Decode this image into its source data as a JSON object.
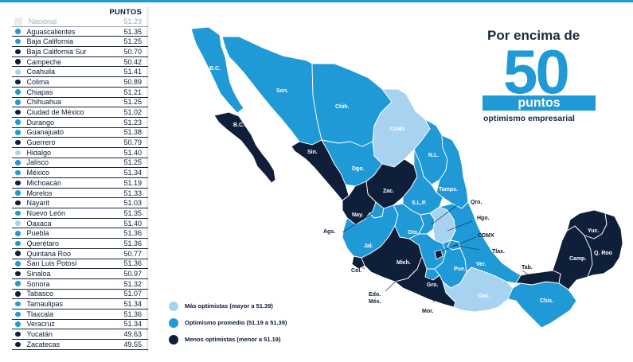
{
  "colors": {
    "light": "#a7d3f0",
    "medium": "#1f9ad6",
    "dark": "#0f1f3a",
    "national": "#ececec"
  },
  "table": {
    "header": "PUNTOS",
    "rows": [
      {
        "state": "Nacional",
        "value": "51.29",
        "group": "national"
      },
      {
        "state": "Aguascalientes",
        "value": "51.35",
        "group": "medium"
      },
      {
        "state": "Baja California",
        "value": "51.25",
        "group": "medium"
      },
      {
        "state": "Baja California Sur",
        "value": "50.70",
        "group": "dark"
      },
      {
        "state": "Campeche",
        "value": "50.42",
        "group": "dark"
      },
      {
        "state": "Coahuila",
        "value": "51.41",
        "group": "light"
      },
      {
        "state": "Colima",
        "value": "50.89",
        "group": "dark"
      },
      {
        "state": "Chiapas",
        "value": "51.21",
        "group": "medium"
      },
      {
        "state": "Chihuahua",
        "value": "51.25",
        "group": "medium"
      },
      {
        "state": "Ciudad de México",
        "value": "51.02",
        "group": "dark"
      },
      {
        "state": "Durango",
        "value": "51.23",
        "group": "medium"
      },
      {
        "state": "Guanajuato",
        "value": "51.38",
        "group": "medium"
      },
      {
        "state": "Guerrero",
        "value": "50.79",
        "group": "dark"
      },
      {
        "state": "Hidalgo",
        "value": "51.40",
        "group": "light"
      },
      {
        "state": "Jalisco",
        "value": "51.25",
        "group": "medium"
      },
      {
        "state": "México",
        "value": "51.34",
        "group": "medium"
      },
      {
        "state": "Michoacán",
        "value": "51.19",
        "group": "dark"
      },
      {
        "state": "Morelos",
        "value": "51.33",
        "group": "medium"
      },
      {
        "state": "Nayarit",
        "value": "51.03",
        "group": "dark"
      },
      {
        "state": "Nuevo León",
        "value": "51.35",
        "group": "medium"
      },
      {
        "state": "Oaxaca",
        "value": "51.40",
        "group": "light"
      },
      {
        "state": "Puebla",
        "value": "51.36",
        "group": "medium"
      },
      {
        "state": "Querétaro",
        "value": "51.36",
        "group": "medium"
      },
      {
        "state": "Quintana Roo",
        "value": "50.77",
        "group": "dark"
      },
      {
        "state": "San Luis Potosí",
        "value": "51.36",
        "group": "medium"
      },
      {
        "state": "Sinaloa",
        "value": "50.97",
        "group": "dark"
      },
      {
        "state": "Sonora",
        "value": "51.32",
        "group": "medium"
      },
      {
        "state": "Tabasco",
        "value": "51.07",
        "group": "dark"
      },
      {
        "state": "Tamaulipas",
        "value": "51.34",
        "group": "medium"
      },
      {
        "state": "Tlaxcala",
        "value": "51.36",
        "group": "medium"
      },
      {
        "state": "Veracruz",
        "value": "51.34",
        "group": "medium"
      },
      {
        "state": "Yucatán",
        "value": "49.63",
        "group": "dark"
      },
      {
        "state": "Zacatecas",
        "value": "49.55",
        "group": "dark"
      }
    ]
  },
  "headline": {
    "top": "Por encima de",
    "number": "50",
    "box": "puntos",
    "bottom": "optimismo empresarial"
  },
  "legend": [
    {
      "label": "Más optimistas (mayor a 51.39)",
      "group": "light"
    },
    {
      "label": "Optimismo promedio (51.19 a 51.39)",
      "group": "medium"
    },
    {
      "label": "Menos optimistas (menor a 51.19)",
      "group": "dark"
    }
  ],
  "map_labels": {
    "bc": "B.C.",
    "son": "Son.",
    "chih": "Chih.",
    "coah": "Coah.",
    "bcs": "B.C.S.",
    "sin": "Sin.",
    "dgo": "Dgo.",
    "nl": "N.L.",
    "tamps": "Tamps.",
    "zac": "Zac.",
    "slp": "S.L.P.",
    "nay": "Nay.",
    "ags": "Ags.",
    "qro": "Qro.",
    "hgo": "Hgo.",
    "cto": "Gto.",
    "jal": "Jal.",
    "cdmx": "CDMX",
    "tlax": "Tlax.",
    "col": "Col.",
    "mich": "Mich.",
    "pue": "Pue.",
    "ver": "Ver.",
    "edomex": "Edo.\nMéx.",
    "gro": "Gro.",
    "mor": "Mor.",
    "oax": "Oax.",
    "chis": "Chis.",
    "tab": "Tab.",
    "camp": "Camp.",
    "yuc": "Yuc.",
    "qroo": "Q. Roo"
  }
}
